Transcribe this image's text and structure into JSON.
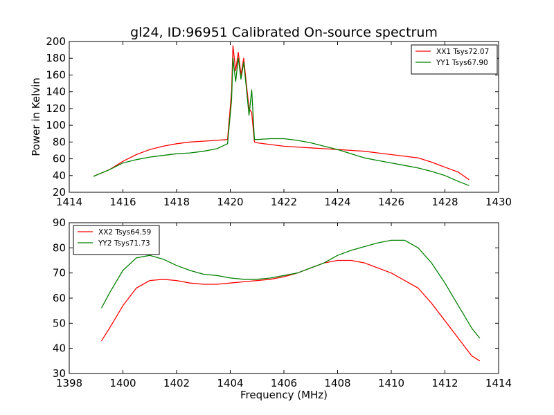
{
  "title": "gl24, ID:96951 Calibrated On-source spectrum",
  "chart_data": [
    {
      "type": "line",
      "title": "gl24, ID:96951 Calibrated On-source spectrum",
      "xlabel": "",
      "ylabel": "Power in Kelvin",
      "xlim": [
        1414,
        1430
      ],
      "ylim": [
        20,
        200
      ],
      "xticks": [
        1414,
        1416,
        1418,
        1420,
        1422,
        1424,
        1426,
        1428,
        1430
      ],
      "yticks": [
        20,
        40,
        60,
        80,
        100,
        120,
        140,
        160,
        180,
        200
      ],
      "grid": false,
      "legend": "top-right",
      "x": [
        1414.9,
        1415.5,
        1416.0,
        1416.5,
        1417.0,
        1417.5,
        1418.0,
        1418.5,
        1419.0,
        1419.5,
        1419.9,
        1420.05,
        1420.1,
        1420.2,
        1420.3,
        1420.4,
        1420.5,
        1420.6,
        1420.7,
        1420.8,
        1420.9,
        1421.0,
        1421.5,
        1422.0,
        1422.5,
        1423.0,
        1423.5,
        1424.0,
        1424.5,
        1425.0,
        1425.5,
        1426.0,
        1426.5,
        1427.0,
        1427.5,
        1428.0,
        1428.5,
        1428.9
      ],
      "series": [
        {
          "name": "XX1 Tsys72.07",
          "color": "#ff0000",
          "values": [
            39,
            47,
            57,
            65,
            71,
            75,
            78,
            80,
            81,
            82,
            83,
            140,
            195,
            165,
            187,
            160,
            180,
            150,
            120,
            115,
            80,
            79,
            77,
            75,
            74,
            73,
            72,
            71,
            70,
            69,
            67,
            65,
            63,
            61,
            56,
            50,
            44,
            35
          ]
        },
        {
          "name": "YY1 Tsys67.90",
          "color": "#008000",
          "values": [
            39,
            47,
            55,
            59,
            62,
            64,
            66,
            67,
            69,
            72,
            78,
            130,
            180,
            152,
            180,
            155,
            175,
            145,
            112,
            142,
            83,
            83,
            84,
            84,
            82,
            79,
            75,
            71,
            66,
            61,
            58,
            55,
            52,
            49,
            45,
            40,
            33,
            28
          ]
        }
      ]
    },
    {
      "type": "line",
      "title": "",
      "xlabel": "Frequency (MHz)",
      "ylabel": "",
      "xlim": [
        1398,
        1414
      ],
      "ylim": [
        30,
        90
      ],
      "xticks": [
        1398,
        1400,
        1402,
        1404,
        1406,
        1408,
        1410,
        1412,
        1414
      ],
      "yticks": [
        30,
        40,
        50,
        60,
        70,
        80,
        90
      ],
      "grid": false,
      "legend": "top-left",
      "x": [
        1399.2,
        1399.5,
        1400.0,
        1400.5,
        1401.0,
        1401.5,
        1402.0,
        1402.5,
        1403.0,
        1403.5,
        1404.0,
        1404.5,
        1405.0,
        1405.5,
        1406.0,
        1406.5,
        1407.0,
        1407.5,
        1408.0,
        1408.5,
        1409.0,
        1409.5,
        1410.0,
        1410.5,
        1411.0,
        1411.5,
        1412.0,
        1412.5,
        1413.0,
        1413.3
      ],
      "series": [
        {
          "name": "XX2 Tsys64.59",
          "color": "#ff0000",
          "values": [
            43,
            48,
            57,
            64,
            67,
            67.5,
            67,
            66,
            65.5,
            65.5,
            66,
            66.5,
            67,
            67.5,
            68.5,
            70,
            72,
            74,
            75,
            75,
            74,
            72,
            70,
            67,
            64,
            58,
            51,
            44,
            37,
            35
          ]
        },
        {
          "name": "YY2 Tsys71.73",
          "color": "#008000",
          "values": [
            56,
            62,
            71,
            76,
            77,
            75.5,
            73,
            71,
            69.5,
            69,
            68,
            67.5,
            67.5,
            68,
            69,
            70,
            72,
            74,
            77,
            79,
            80.5,
            82,
            83,
            83,
            80,
            74,
            66,
            57,
            48,
            44
          ]
        }
      ]
    }
  ]
}
